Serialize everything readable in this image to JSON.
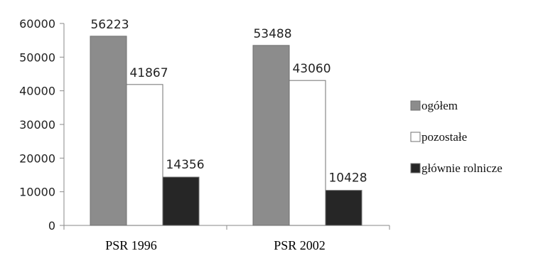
{
  "chart_data": {
    "type": "bar",
    "categories": [
      "PSR 1996",
      "PSR 2002"
    ],
    "series": [
      {
        "name": "ogółem",
        "values": [
          56223,
          53488
        ],
        "color": "#8c8c8c"
      },
      {
        "name": "pozostałe",
        "values": [
          41867,
          43060
        ],
        "color": "#ffffff"
      },
      {
        "name": "głównie rolnicze",
        "values": [
          14356,
          10428
        ],
        "color": "#262626"
      }
    ],
    "ylim": [
      0,
      60000
    ],
    "yticks": [
      "0",
      "10000",
      "20000",
      "30000",
      "40000",
      "50000",
      "60000"
    ],
    "legend": "right",
    "grid": false,
    "data_labels": true
  }
}
